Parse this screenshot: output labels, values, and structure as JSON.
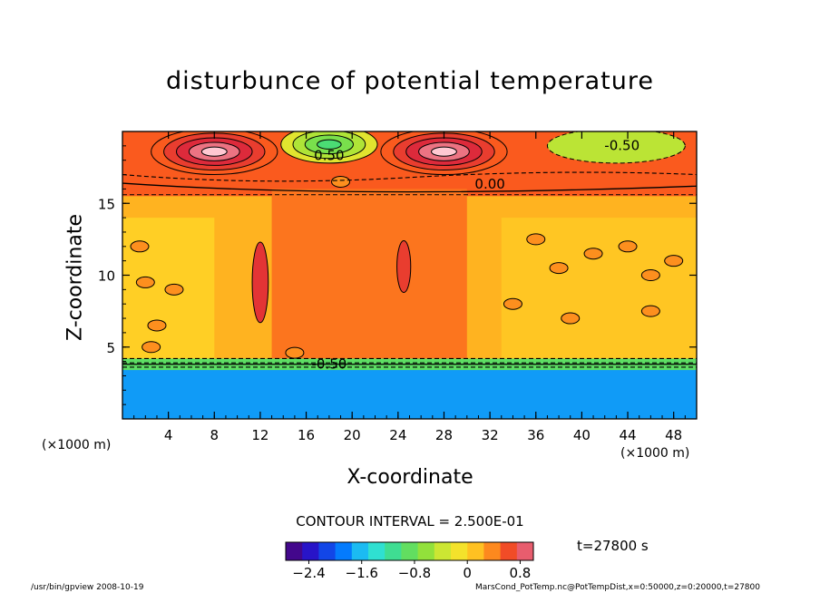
{
  "chart_data": {
    "type": "heatmap",
    "title": "disturbunce of potential temperature",
    "xlabel": "X-coordinate",
    "ylabel": "Z-coordinate",
    "x_unit_left": "(×1000 m)",
    "x_unit_right": "(×1000 m)",
    "xlim": [
      0,
      50
    ],
    "ylim": [
      0,
      20
    ],
    "x_ticks": [
      4,
      8,
      12,
      16,
      20,
      24,
      28,
      32,
      36,
      40,
      44,
      48
    ],
    "y_ticks": [
      5,
      10,
      15
    ],
    "contour_labels": [
      {
        "text": "-0.50",
        "x": 43.5,
        "y": 19.0
      },
      {
        "text": "0.00",
        "x": 32.0,
        "y": 16.3
      },
      {
        "text": "0.50",
        "x": 18.0,
        "y": 18.3
      },
      {
        "text": "-0.50",
        "x": 18.0,
        "y": 3.8
      }
    ],
    "contour_interval_text": "CONTOUR INTERVAL = 2.500E-01",
    "time_text": "t=27800 s",
    "colorbar": {
      "min": -2.75,
      "max": 1.0,
      "ticks": [
        -2.4,
        -1.6,
        -0.8,
        0,
        0.8
      ],
      "tick_labels": [
        "−2.4",
        "−1.6",
        "−0.8",
        "0",
        "0.8"
      ]
    }
  },
  "footer": {
    "left": "/usr/bin/gpview   2008-10-19",
    "right": "MarsCond_PotTemp.nc@PotTempDist,x=0:50000,z=0:20000,t=27800"
  }
}
